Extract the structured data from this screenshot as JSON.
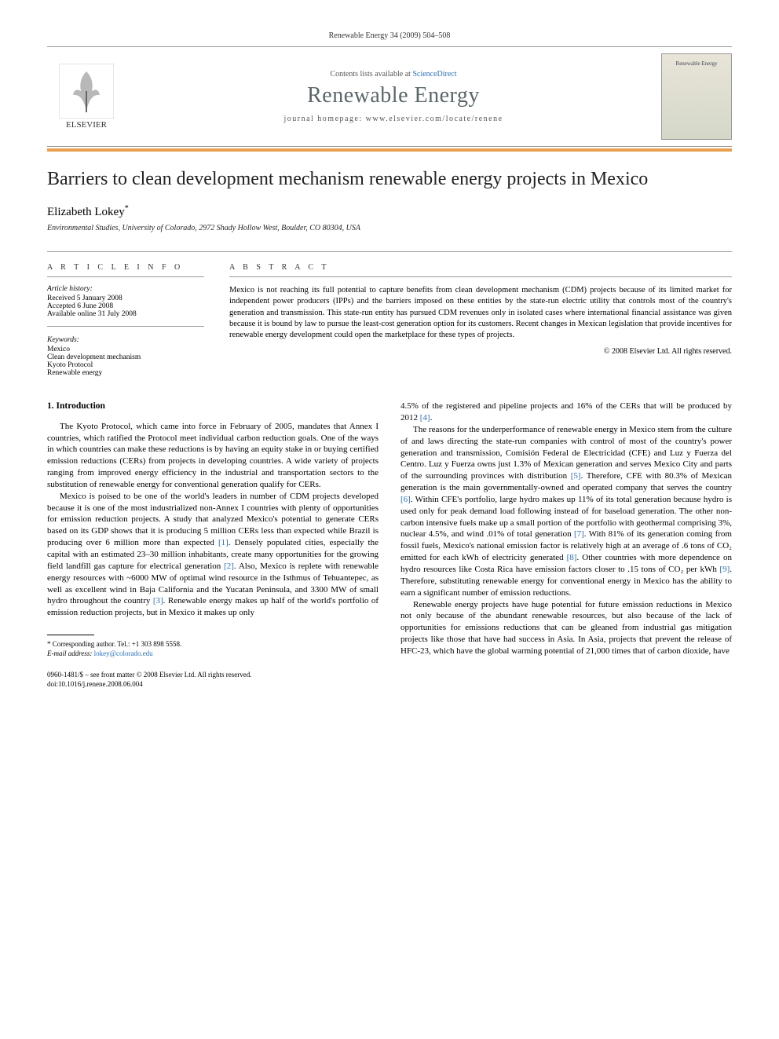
{
  "header": {
    "citation": "Renewable Energy 34 (2009) 504–508"
  },
  "masthead": {
    "elsevier_label": "ELSEVIER",
    "contents_prefix": "Contents lists available at ",
    "contents_link": "ScienceDirect",
    "journal_name": "Renewable Energy",
    "homepage_prefix": "journal homepage: ",
    "homepage_url": "www.elsevier.com/locate/renene",
    "cover_label": "Renewable Energy"
  },
  "colors": {
    "accent_bar": "#e8a050",
    "link": "#2a6ebb",
    "journal_title": "#5a6668"
  },
  "article": {
    "title": "Barriers to clean development mechanism renewable energy projects in Mexico",
    "author": "Elizabeth Lokey",
    "author_marker": "*",
    "affiliation": "Environmental Studies, University of Colorado, 2972 Shady Hollow West, Boulder, CO 80304, USA"
  },
  "article_info": {
    "heading": "A R T I C L E   I N F O",
    "history_label": "Article history:",
    "received": "Received 5 January 2008",
    "accepted": "Accepted 6 June 2008",
    "online": "Available online 31 July 2008",
    "keywords_label": "Keywords:",
    "keywords": [
      "Mexico",
      "Clean development mechanism",
      "Kyoto Protocol",
      "Renewable energy"
    ]
  },
  "abstract": {
    "heading": "A B S T R A C T",
    "text": "Mexico is not reaching its full potential to capture benefits from clean development mechanism (CDM) projects because of its limited market for independent power producers (IPPs) and the barriers imposed on these entities by the state-run electric utility that controls most of the country's generation and transmission. This state-run entity has pursued CDM revenues only in isolated cases where international financial assistance was given because it is bound by law to pursue the least-cost generation option for its customers. Recent changes in Mexican legislation that provide incentives for renewable energy development could open the marketplace for these types of projects.",
    "copyright": "© 2008 Elsevier Ltd. All rights reserved."
  },
  "body": {
    "section_heading": "1. Introduction",
    "col1_paragraphs": [
      "The Kyoto Protocol, which came into force in February of 2005, mandates that Annex I countries, which ratified the Protocol meet individual carbon reduction goals. One of the ways in which countries can make these reductions is by having an equity stake in or buying certified emission reductions (CERs) from projects in developing countries. A wide variety of projects ranging from improved energy efficiency in the industrial and transportation sectors to the substitution of renewable energy for conventional generation qualify for CERs.",
      "Mexico is poised to be one of the world's leaders in number of CDM projects developed because it is one of the most industrialized non-Annex I countries with plenty of opportunities for emission reduction projects. A study that analyzed Mexico's potential to generate CERs based on its GDP shows that it is producing 5 million CERs less than expected while Brazil is producing over 6 million more than expected [1]. Densely populated cities, especially the capital with an estimated 23–30 million inhabitants, create many opportunities for the growing field landfill gas capture for electrical generation [2]. Also, Mexico is replete with renewable energy resources with ~6000 MW of optimal wind resource in the Isthmus of Tehuantepec, as well as excellent wind in Baja California and the Yucatan Peninsula, and 3300 MW of small hydro throughout the country [3]. Renewable energy makes up half of the world's portfolio of emission reduction projects, but in Mexico it makes up only"
    ],
    "col2_paragraphs": [
      "4.5% of the registered and pipeline projects and 16% of the CERs that will be produced by 2012 [4].",
      "The reasons for the underperformance of renewable energy in Mexico stem from the culture of and laws directing the state-run companies with control of most of the country's power generation and transmission, Comisión Federal de Electricidad (CFE) and Luz y Fuerza del Centro. Luz y Fuerza owns just 1.3% of Mexican generation and serves Mexico City and parts of the surrounding provinces with distribution [5]. Therefore, CFE with 80.3% of Mexican generation is the main governmentally-owned and operated company that serves the country [6]. Within CFE's portfolio, large hydro makes up 11% of its total generation because hydro is used only for peak demand load following instead of for baseload generation. The other non-carbon intensive fuels make up a small portion of the portfolio with geothermal comprising 3%, nuclear 4.5%, and wind .01% of total generation [7]. With 81% of its generation coming from fossil fuels, Mexico's national emission factor is relatively high at an average of .6 tons of CO₂ emitted for each kWh of electricity generated [8]. Other countries with more dependence on hydro resources like Costa Rica have emission factors closer to .15 tons of CO₂ per kWh [9]. Therefore, substituting renewable energy for conventional energy in Mexico has the ability to earn a significant number of emission reductions.",
      "Renewable energy projects have huge potential for future emission reductions in Mexico not only because of the abundant renewable resources, but also because of the lack of opportunities for emissions reductions that can be gleaned from industrial gas mitigation projects like those that have had success in Asia. In Asia, projects that prevent the release of HFC-23, which have the global warming potential of 21,000 times that of carbon dioxide, have"
    ],
    "references": {
      "1": "[1]",
      "2": "[2]",
      "3": "[3]",
      "4": "[4]",
      "5": "[5]",
      "6": "[6]",
      "7": "[7]",
      "8": "[8]",
      "9": "[9]"
    }
  },
  "footnote": {
    "corr_label": "* Corresponding author. Tel.: +1 303 898 5558.",
    "email_label": "E-mail address:",
    "email": "lokey@colorado.edu"
  },
  "footer": {
    "issn_line": "0960-1481/$ – see front matter © 2008 Elsevier Ltd. All rights reserved.",
    "doi_line": "doi:10.1016/j.renene.2008.06.004"
  }
}
